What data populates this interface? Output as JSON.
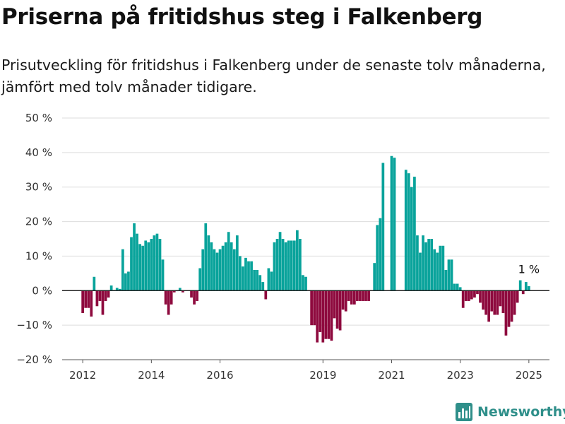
{
  "title": "Priserna på fritidshus steg i Falkenberg",
  "subtitle": "Prisutveckling för fritidshus i Falkenberg under de senaste tolv månaderna, jämfört med tolv månader tidigare.",
  "brand": "Newsworthy",
  "colors": {
    "positive": "#09a39b",
    "negative": "#8e0a3e",
    "grid": "#dddddd",
    "brand": "#2f8f8a"
  },
  "chart_data": {
    "type": "bar",
    "x_unit": "year (decimal, monthly bars)",
    "xlim": [
      2011.4,
      2025.6
    ],
    "ylim": [
      -20,
      50
    ],
    "y_ticks": [
      -20,
      -10,
      0,
      10,
      20,
      30,
      40,
      50
    ],
    "y_tick_labels": [
      "−20 %",
      "−10 %",
      "0 %",
      "10 %",
      "20 %",
      "30 %",
      "40 %",
      "50 %"
    ],
    "x_ticks": [
      2012,
      2014,
      2016,
      2019,
      2021,
      2023,
      2025
    ],
    "x_tick_labels": [
      "2012",
      "2014",
      "2016",
      "2019",
      "2021",
      "2023",
      "2025"
    ],
    "grid": true,
    "annotation": {
      "text": "1 %",
      "x": 2025.0,
      "y": 1
    },
    "x": [
      2012.0,
      2012.083,
      2012.167,
      2012.25,
      2012.333,
      2012.417,
      2012.5,
      2012.583,
      2012.667,
      2012.75,
      2012.833,
      2012.917,
      2013.0,
      2013.083,
      2013.167,
      2013.25,
      2013.333,
      2013.417,
      2013.5,
      2013.583,
      2013.667,
      2013.75,
      2013.833,
      2013.917,
      2014.0,
      2014.083,
      2014.167,
      2014.25,
      2014.333,
      2014.417,
      2014.5,
      2014.583,
      2014.667,
      2014.75,
      2014.833,
      2014.917,
      2015.0,
      2015.083,
      2015.167,
      2015.25,
      2015.333,
      2015.417,
      2015.5,
      2015.583,
      2015.667,
      2015.75,
      2015.833,
      2015.917,
      2016.0,
      2016.083,
      2016.167,
      2016.25,
      2016.333,
      2016.417,
      2016.5,
      2016.583,
      2016.667,
      2016.75,
      2016.833,
      2016.917,
      2017.0,
      2017.083,
      2017.167,
      2017.25,
      2017.333,
      2017.417,
      2017.5,
      2017.583,
      2017.667,
      2017.75,
      2017.833,
      2017.917,
      2018.0,
      2018.083,
      2018.167,
      2018.25,
      2018.333,
      2018.417,
      2018.5,
      2018.583,
      2018.667,
      2018.75,
      2018.833,
      2018.917,
      2019.0,
      2019.083,
      2019.167,
      2019.25,
      2019.333,
      2019.417,
      2019.5,
      2019.583,
      2019.667,
      2019.75,
      2019.833,
      2019.917,
      2020.0,
      2020.083,
      2020.167,
      2020.25,
      2020.333,
      2020.417,
      2020.5,
      2020.583,
      2020.667,
      2020.75,
      2020.833,
      2020.917,
      2021.0,
      2021.083,
      2021.167,
      2021.25,
      2021.333,
      2021.417,
      2021.5,
      2021.583,
      2021.667,
      2021.75,
      2021.833,
      2021.917,
      2022.0,
      2022.083,
      2022.167,
      2022.25,
      2022.333,
      2022.417,
      2022.5,
      2022.583,
      2022.667,
      2022.75,
      2022.833,
      2022.917,
      2023.0,
      2023.083,
      2023.167,
      2023.25,
      2023.333,
      2023.417,
      2023.5,
      2023.583,
      2023.667,
      2023.75,
      2023.833,
      2023.917,
      2024.0,
      2024.083,
      2024.167,
      2024.25,
      2024.333,
      2024.417,
      2024.5,
      2024.583,
      2024.667,
      2024.75,
      2024.833,
      2024.917,
      2025.0
    ],
    "values": [
      -6.5,
      -5,
      -5,
      -7.5,
      4,
      -4.5,
      -3,
      -7,
      -3,
      -2,
      1.5,
      0.2,
      0.8,
      0.5,
      12,
      5,
      5.5,
      15.5,
      19.5,
      16.5,
      13.5,
      13,
      14.5,
      14,
      15,
      16,
      16.5,
      15,
      9,
      -4,
      -7,
      -4,
      -0.5,
      0,
      0.8,
      -0.5,
      null,
      null,
      -2,
      -4,
      -3,
      6.5,
      12,
      19.5,
      16,
      14,
      12,
      11,
      12,
      13,
      14,
      17,
      14,
      12,
      16,
      10,
      7,
      9.5,
      8.5,
      8.5,
      6,
      6,
      4.5,
      2.5,
      -2.5,
      6.5,
      5.5,
      14,
      15,
      17,
      15,
      14,
      14.5,
      14.5,
      14.5,
      17.5,
      15,
      4.5,
      4,
      null,
      -10,
      -10,
      -15,
      -12,
      -15,
      -14,
      -14,
      -14.5,
      -8,
      -11,
      -11.5,
      -5.5,
      -6,
      -3,
      -4,
      -4,
      -3,
      -3,
      -3,
      -3,
      -3,
      null,
      8,
      19,
      21,
      37,
      null,
      null,
      39,
      38.5,
      null,
      null,
      null,
      35,
      34,
      30,
      33,
      16,
      11,
      16,
      14,
      15,
      15,
      12,
      11,
      13,
      13,
      6,
      9,
      9,
      2,
      2,
      1,
      -5,
      -3,
      -3,
      -2.5,
      -2,
      -1,
      -3.5,
      -5.5,
      -7,
      -9,
      -6,
      -7,
      -7,
      -4.5,
      -6.5,
      -13,
      -10.5,
      -9,
      -7,
      -3.5,
      3,
      -1,
      2.5,
      1.3
    ]
  }
}
